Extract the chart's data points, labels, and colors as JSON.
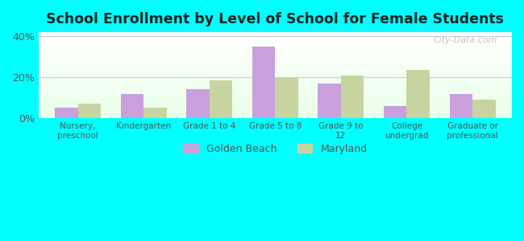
{
  "title": "School Enrollment by Level of School for Female Students",
  "categories": [
    "Nursery,\npreschool",
    "Kindergarten",
    "Grade 1 to 4",
    "Grade 5 to 8",
    "Grade 9 to\n12",
    "College\nundergrad",
    "Graduate or\nprofessional"
  ],
  "golden_beach": [
    5.0,
    12.0,
    14.0,
    35.0,
    17.0,
    6.0,
    12.0
  ],
  "maryland": [
    7.0,
    5.0,
    18.5,
    19.5,
    21.0,
    23.5,
    9.0
  ],
  "golden_beach_color": "#c9a0dc",
  "maryland_color": "#c8d4a0",
  "background_color": "#00ffff",
  "plot_bg_top": "#e8ffe8",
  "plot_bg_bottom": "#ffffff",
  "ylim": [
    0,
    42
  ],
  "yticks": [
    0,
    20,
    40
  ],
  "ytick_labels": [
    "0%",
    "20%",
    "40%"
  ],
  "bar_width": 0.35,
  "legend_label_1": "Golden Beach",
  "legend_label_2": "Maryland",
  "watermark": "City-Data.com"
}
